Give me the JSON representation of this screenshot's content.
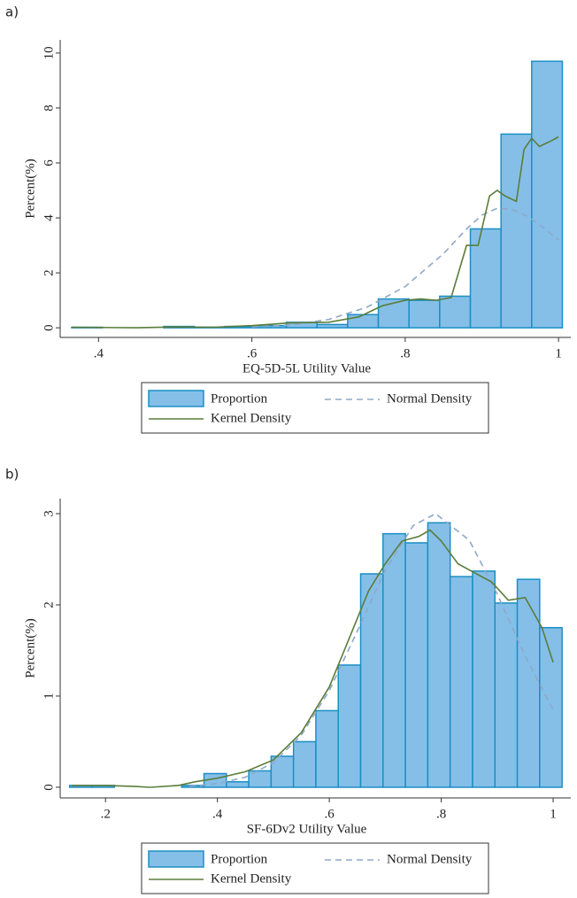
{
  "chart_data": [
    {
      "type": "histogram",
      "panel_label": "a)",
      "x_label": "EQ-5D-5L Utility Value",
      "y_label": "Percent(%)",
      "name": "Proportion",
      "color": "#85bfe8",
      "edge_color": "#1b8fc4",
      "bins": [
        0.365,
        0.405,
        0.445,
        0.485,
        0.525,
        0.565,
        0.605,
        0.645,
        0.685,
        0.725,
        0.765,
        0.805,
        0.845,
        0.885,
        0.925,
        0.965,
        1.005
      ],
      "counts": [
        0.02,
        0,
        0,
        0.05,
        0.02,
        0.05,
        0.08,
        0.2,
        0.12,
        0.48,
        1.05,
        1.0,
        1.15,
        3.6,
        7.05,
        9.7
      ],
      "series": [
        {
          "name": "Normal Density",
          "color": "#8fa8c8",
          "dashed": true,
          "x": [
            0.6,
            0.65,
            0.7,
            0.75,
            0.8,
            0.85,
            0.88,
            0.9,
            0.92,
            0.94,
            0.96,
            0.98,
            1.0
          ],
          "values": [
            0.03,
            0.1,
            0.3,
            0.75,
            1.5,
            2.7,
            3.6,
            4.1,
            4.35,
            4.3,
            4.05,
            3.65,
            3.2
          ]
        },
        {
          "name": "Kernel Density",
          "color": "#5b7d3a",
          "dashed": false,
          "x": [
            0.365,
            0.45,
            0.5,
            0.55,
            0.6,
            0.65,
            0.7,
            0.74,
            0.77,
            0.8,
            0.82,
            0.84,
            0.86,
            0.88,
            0.895,
            0.91,
            0.92,
            0.93,
            0.945,
            0.955,
            0.965,
            0.975,
            0.99,
            1.0
          ],
          "values": [
            0.02,
            0.0,
            0.03,
            0.02,
            0.08,
            0.18,
            0.2,
            0.4,
            0.8,
            1.0,
            1.05,
            1.0,
            1.1,
            3.0,
            3.0,
            4.8,
            5.0,
            4.8,
            4.6,
            6.5,
            6.9,
            6.6,
            6.8,
            6.95
          ]
        }
      ],
      "xlim": [
        0.35,
        1.016
      ],
      "ylim": [
        -0.35,
        10.48
      ],
      "xticks": [
        {
          "value": 0.4,
          "label": ".4"
        },
        {
          "value": 0.6,
          "label": ".6"
        },
        {
          "value": 0.8,
          "label": ".8"
        },
        1
      ],
      "yticks": [
        0,
        2,
        4,
        6,
        8,
        10
      ]
    },
    {
      "type": "histogram",
      "panel_label": "b)",
      "x_label": "SF-6Dv2 Utility Value",
      "y_label": "Percent(%)",
      "name": "Proportion",
      "color": "#85bfe8",
      "edge_color": "#1b8fc4",
      "bins": [
        0.136,
        0.176,
        0.216,
        0.256,
        0.296,
        0.336,
        0.376,
        0.416,
        0.456,
        0.496,
        0.536,
        0.576,
        0.616,
        0.656,
        0.696,
        0.736,
        0.776,
        0.816,
        0.856,
        0.896,
        0.936,
        0.976,
        1.016
      ],
      "counts": [
        0.02,
        0.02,
        0,
        0,
        0,
        0.02,
        0.15,
        0.06,
        0.18,
        0.34,
        0.5,
        0.84,
        1.34,
        2.34,
        2.78,
        2.68,
        2.9,
        2.31,
        2.37,
        2.02,
        2.28,
        1.75
      ],
      "series": [
        {
          "name": "Normal Density",
          "color": "#8fa8c8",
          "dashed": true,
          "x": [
            0.35,
            0.4,
            0.45,
            0.5,
            0.55,
            0.6,
            0.65,
            0.7,
            0.75,
            0.79,
            0.85,
            0.9,
            0.95,
            1.0
          ],
          "values": [
            0.01,
            0.04,
            0.11,
            0.27,
            0.57,
            1.06,
            1.71,
            2.38,
            2.87,
            3.0,
            2.71,
            2.12,
            1.44,
            0.85
          ]
        },
        {
          "name": "Kernel Density",
          "color": "#5b7d3a",
          "dashed": false,
          "x": [
            0.14,
            0.2,
            0.25,
            0.28,
            0.33,
            0.36,
            0.4,
            0.45,
            0.5,
            0.55,
            0.6,
            0.64,
            0.67,
            0.7,
            0.73,
            0.76,
            0.78,
            0.8,
            0.83,
            0.86,
            0.89,
            0.92,
            0.95,
            0.98,
            1.0
          ],
          "values": [
            0.02,
            0.02,
            0.01,
            0.0,
            0.02,
            0.06,
            0.1,
            0.17,
            0.3,
            0.6,
            1.1,
            1.7,
            2.15,
            2.45,
            2.7,
            2.75,
            2.82,
            2.7,
            2.45,
            2.35,
            2.25,
            2.05,
            2.08,
            1.75,
            1.37
          ]
        }
      ],
      "xlim": [
        0.119,
        1.0316
      ],
      "ylim": [
        -0.117,
        3.165
      ],
      "xticks": [
        {
          "value": 0.2,
          "label": ".2"
        },
        {
          "value": 0.4,
          "label": ".4"
        },
        {
          "value": 0.6,
          "label": ".6"
        },
        {
          "value": 0.8,
          "label": ".8"
        },
        1
      ],
      "yticks": [
        0,
        1,
        2,
        3
      ]
    }
  ]
}
